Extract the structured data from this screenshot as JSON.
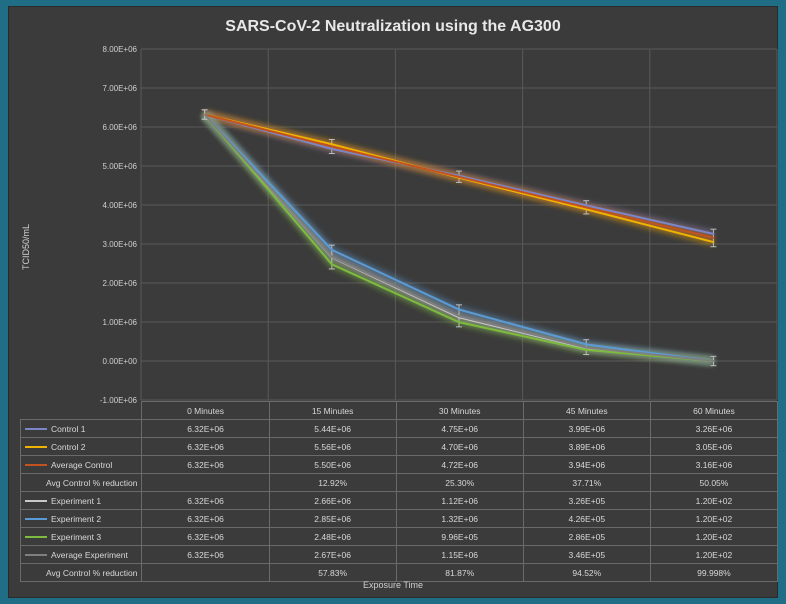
{
  "chart_data": {
    "type": "line",
    "title": "SARS-CoV-2 Neutralization using the AG300",
    "xlabel": "Exposure Time",
    "ylabel": "TCID50/mL",
    "categories": [
      "0 Minutes",
      "15 Minutes",
      "30 Minutes",
      "45 Minutes",
      "60 Minutes"
    ],
    "ylim": [
      -1000000,
      8000000
    ],
    "yticks": [
      -1000000,
      0,
      1000000,
      2000000,
      3000000,
      4000000,
      5000000,
      6000000,
      7000000,
      8000000
    ],
    "ytick_labels": [
      "-1.00E+06",
      "0.00E+00",
      "1.00E+06",
      "2.00E+06",
      "3.00E+06",
      "4.00E+06",
      "5.00E+06",
      "6.00E+06",
      "7.00E+06",
      "8.00E+06"
    ],
    "grid": true,
    "series": [
      {
        "name": "Control 1",
        "color": "#7a86c8",
        "values": [
          6320000,
          5440000,
          4750000,
          3990000,
          3260000
        ],
        "labels": [
          "6.32E+06",
          "5.44E+06",
          "4.75E+06",
          "3.99E+06",
          "3.26E+06"
        ]
      },
      {
        "name": "Control 2",
        "color": "#f0b400",
        "values": [
          6320000,
          5560000,
          4700000,
          3890000,
          3050000
        ],
        "labels": [
          "6.32E+06",
          "5.56E+06",
          "4.70E+06",
          "3.89E+06",
          "3.05E+06"
        ]
      },
      {
        "name": "Average Control",
        "color": "#c2531f",
        "values": [
          6320000,
          5500000,
          4720000,
          3940000,
          3160000
        ],
        "labels": [
          "6.32E+06",
          "5.50E+06",
          "4.72E+06",
          "3.94E+06",
          "3.16E+06"
        ]
      },
      {
        "name": "Experiment 1",
        "color": "#c8c8c8",
        "values": [
          6320000,
          2660000,
          1120000,
          326000,
          120
        ],
        "labels": [
          "6.32E+06",
          "2.66E+06",
          "1.12E+06",
          "3.26E+05",
          "1.20E+02"
        ]
      },
      {
        "name": "Experiment 2",
        "color": "#5b9bd5",
        "values": [
          6320000,
          2850000,
          1320000,
          426000,
          120
        ],
        "labels": [
          "6.32E+06",
          "2.85E+06",
          "1.32E+06",
          "4.26E+05",
          "1.20E+02"
        ]
      },
      {
        "name": "Experiment 3",
        "color": "#7dbb3e",
        "values": [
          6320000,
          2480000,
          996000,
          286000,
          120
        ],
        "labels": [
          "6.32E+06",
          "2.48E+06",
          "9.96E+05",
          "2.86E+05",
          "1.20E+02"
        ]
      },
      {
        "name": "Average Experiment",
        "color": "#7f7f7f",
        "values": [
          6320000,
          2670000,
          1150000,
          346000,
          120
        ],
        "labels": [
          "6.32E+06",
          "2.67E+06",
          "1.15E+06",
          "3.46E+05",
          "1.20E+02"
        ]
      }
    ],
    "table_rows": [
      {
        "key": "Control 1"
      },
      {
        "key": "Control 2"
      },
      {
        "key": "Average Control"
      },
      {
        "label": "Avg Control % reduction",
        "cells": [
          "",
          "12.92%",
          "25.30%",
          "37.71%",
          "50.05%"
        ]
      },
      {
        "key": "Experiment 1"
      },
      {
        "key": "Experiment 2"
      },
      {
        "key": "Experiment 3"
      },
      {
        "key": "Average Experiment"
      },
      {
        "label": "Avg Control % reduction",
        "cells": [
          "",
          "57.83%",
          "81.87%",
          "94.52%",
          "99.998%"
        ]
      }
    ]
  }
}
